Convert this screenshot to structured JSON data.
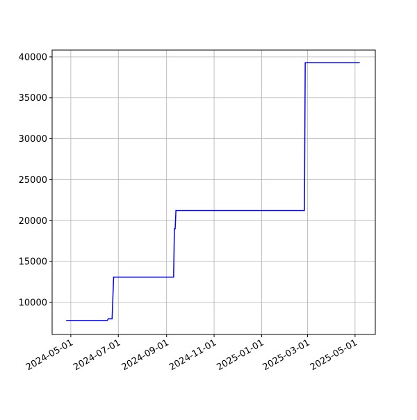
{
  "chart_data": {
    "type": "line",
    "x": [
      "2024-04-25",
      "2024-06-17",
      "2024-06-18",
      "2024-06-23",
      "2024-06-25",
      "2024-09-10",
      "2024-09-11",
      "2024-09-12",
      "2024-09-13",
      "2025-02-25",
      "2025-02-26",
      "2025-05-07"
    ],
    "series": [
      {
        "color": "#0000ff",
        "values": [
          7800,
          7800,
          8000,
          8000,
          13100,
          13100,
          19000,
          19000,
          21250,
          21250,
          39300,
          39300
        ]
      }
    ],
    "xlim": [
      "2024-04-07",
      "2025-05-27"
    ],
    "xticks": [
      "2024-05-01",
      "2024-07-01",
      "2024-09-01",
      "2024-11-01",
      "2025-01-01",
      "2025-03-01",
      "2025-05-01"
    ],
    "ylim": [
      6090,
      40840
    ],
    "yticks": [
      10000,
      15000,
      20000,
      25000,
      30000,
      35000,
      40000
    ],
    "grid": true
  }
}
